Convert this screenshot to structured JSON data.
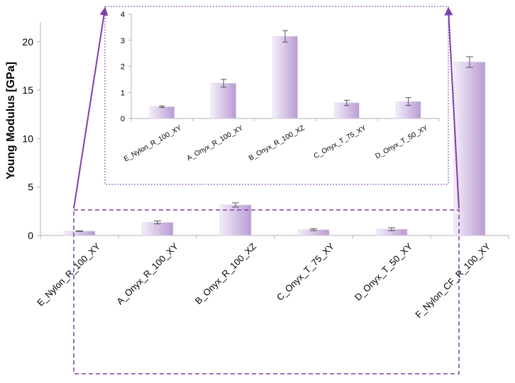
{
  "chart_data": [
    {
      "type": "bar",
      "role": "main",
      "title": "",
      "xlabel": "",
      "ylabel": "Young Modulus [GPa]",
      "ylim": [
        0,
        22
      ],
      "yticks": [
        0,
        5,
        10,
        15,
        20
      ],
      "grid": false,
      "categories": [
        "E_Nylon_R_100_XY",
        "A_Onyx_R_100_XY",
        "B_Onyx_R_100_XZ",
        "C_Onyx_T_75_XY",
        "D_Onyx_T_50_XY",
        "F_Nylon_CF_R_100_XY"
      ],
      "values": [
        0.45,
        1.35,
        3.15,
        0.6,
        0.65,
        17.9
      ],
      "errors": [
        0.03,
        0.15,
        0.22,
        0.1,
        0.15,
        0.55
      ]
    },
    {
      "type": "bar",
      "role": "inset-zoom",
      "title": "",
      "xlabel": "",
      "ylabel": "",
      "ylim": [
        0,
        4
      ],
      "yticks": [
        0,
        1,
        2,
        3,
        4
      ],
      "grid": false,
      "categories": [
        "E_Nylon_R_100_XY",
        "A_Onyx_R_100_XY",
        "B_Onyx_R_100_XZ",
        "C_Onyx_T_75_XY",
        "D_Onyx_T_50_XY"
      ],
      "values": [
        0.45,
        1.35,
        3.15,
        0.6,
        0.65
      ],
      "errors": [
        0.03,
        0.15,
        0.22,
        0.1,
        0.15
      ]
    }
  ],
  "colors": {
    "bar_light": "#f3eef8",
    "bar_dark": "#b99bd4",
    "callout": "#7f3fa8",
    "axis": "#b3b3b3",
    "error_bar": "#555555"
  }
}
